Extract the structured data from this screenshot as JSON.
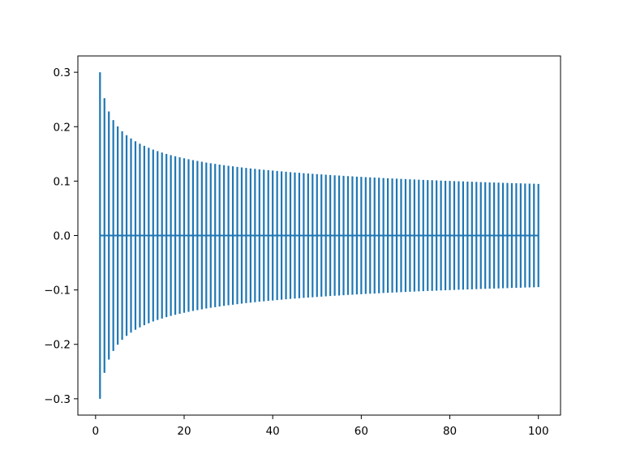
{
  "chart_data": {
    "type": "errorbar",
    "title": "",
    "xlabel": "",
    "ylabel": "",
    "x": {
      "start": 1,
      "end": 100,
      "step": 1
    },
    "y_value": 0,
    "error": {
      "formula": "0.3 / x^0.25",
      "at_x_1": 0.3,
      "at_x_100": 0.095
    },
    "xlim": [
      -4,
      105
    ],
    "ylim": [
      -0.33,
      0.33
    ],
    "x_ticks": [
      "0",
      "20",
      "40",
      "60",
      "80",
      "100"
    ],
    "x_tick_values": [
      0,
      20,
      40,
      60,
      80,
      100
    ],
    "y_ticks": [
      "−0.3",
      "−0.2",
      "−0.1",
      "0.0",
      "0.1",
      "0.2",
      "0.3"
    ],
    "y_tick_values": [
      -0.3,
      -0.2,
      -0.1,
      0.0,
      0.1,
      0.2,
      0.3
    ],
    "grid": false,
    "legend": "none",
    "series_color": "#1f77b4"
  }
}
